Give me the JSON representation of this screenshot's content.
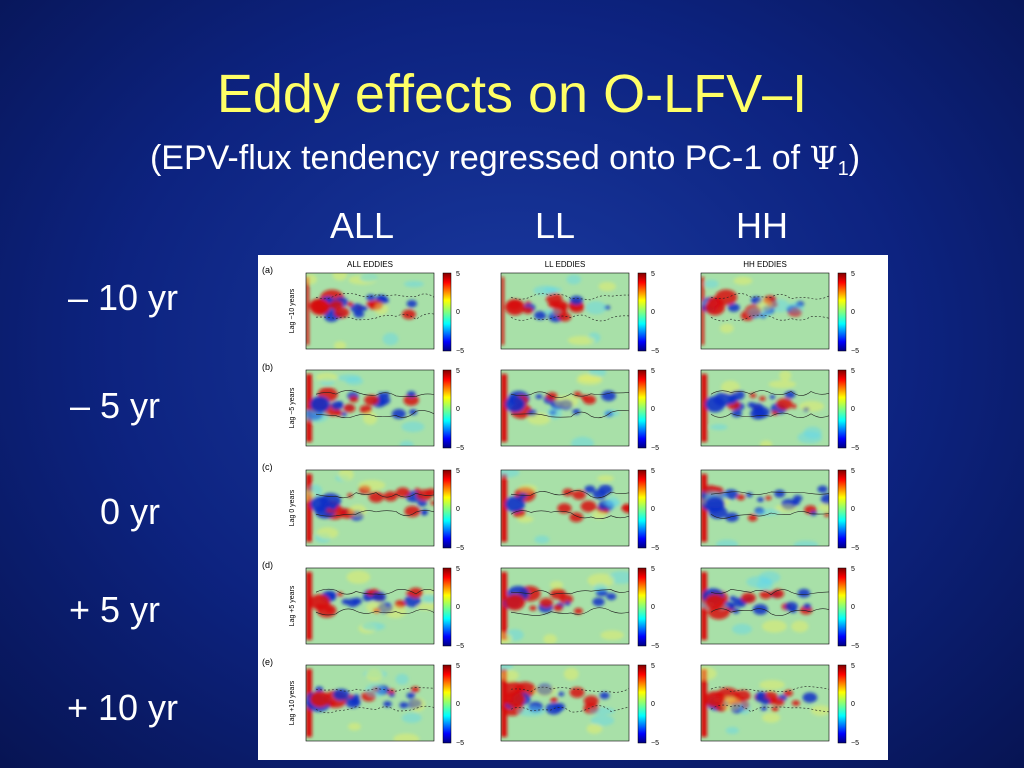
{
  "slide": {
    "title": "Eddy  effects on O-LFV–I",
    "subtitle_pre": "(EPV-flux tendency regressed onto PC-1 of ",
    "subtitle_symbol": "Ψ",
    "subtitle_sub": "1",
    "subtitle_post": ")"
  },
  "columns": [
    "ALL",
    "LL",
    "HH"
  ],
  "rows": [
    "– 10 yr",
    "– 5 yr",
    "0 yr",
    "+ 5 yr",
    "+ 10 yr"
  ],
  "figure": {
    "panel_headers": [
      "ALL EDDIES",
      "LL EDDIES",
      "HH EDDIES"
    ],
    "panel_letters": [
      "(a)",
      "(b)",
      "(c)",
      "(d)",
      "(e)"
    ],
    "ylabels": [
      "Lag −10 years",
      "Lag −5 years",
      "Lag 0 years",
      "Lag +5 years",
      "Lag +10 years"
    ],
    "colorbar_ticks": [
      "5",
      "0",
      "−5"
    ],
    "colors": {
      "cold": "#1030c8",
      "warm": "#d81010",
      "neutral": "#a8e0a8"
    }
  }
}
